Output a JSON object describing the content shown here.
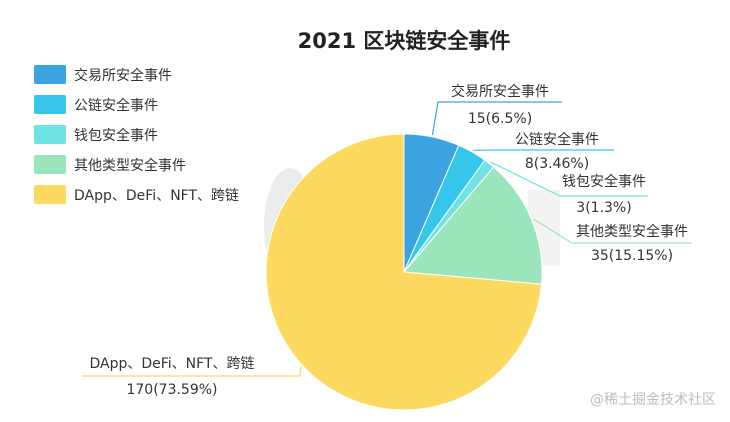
{
  "chart_data": {
    "type": "pie",
    "title": "2021 区块链安全事件",
    "slices": [
      {
        "name": "交易所安全事件",
        "value": 15,
        "label": "15(6.5%)",
        "color": "#3BA3E0"
      },
      {
        "name": "公链安全事件",
        "value": 8,
        "label": "8(3.46%)",
        "color": "#36C6EC"
      },
      {
        "name": "钱包安全事件",
        "value": 3,
        "label": "3(1.3%)",
        "color": "#6FE2E4"
      },
      {
        "name": "其他类型安全事件",
        "value": 35,
        "label": "35(15.15%)",
        "color": "#9BE5BC"
      },
      {
        "name": "DApp、DeFi、NFT、跨链",
        "value": 170,
        "label": "170(73.59%)",
        "color": "#FDDA5F"
      }
    ],
    "legend_position": "top-left"
  },
  "watermark": "@稀土掘金技术社区"
}
